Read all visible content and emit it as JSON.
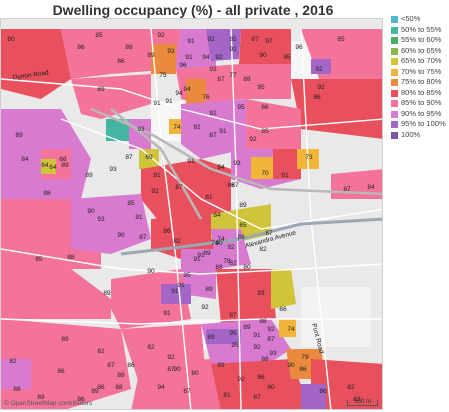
{
  "title": "Dwelling occupancy (%) - all private , 2016",
  "legend": [
    {
      "label": "<50%",
      "color": "#4fb6c8"
    },
    {
      "label": "50% to 55%",
      "color": "#45b5a3"
    },
    {
      "label": "55% to 60%",
      "color": "#4caf68"
    },
    {
      "label": "60% to 65%",
      "color": "#86b84a"
    },
    {
      "label": "65% to 70%",
      "color": "#cfc43a"
    },
    {
      "label": "70% to 75%",
      "color": "#f2b53a"
    },
    {
      "label": "75% to 80%",
      "color": "#ea8a3e"
    },
    {
      "label": "80% to 85%",
      "color": "#e8505e"
    },
    {
      "label": "85% to 90%",
      "color": "#f4739a"
    },
    {
      "label": "90% to 95%",
      "color": "#d77ad0"
    },
    {
      "label": "95% to 100%",
      "color": "#a466c6"
    },
    {
      "label": "100%",
      "color": "#7d55a6"
    }
  ],
  "map": {
    "attribution": "© OpenStreetMap contributors",
    "scale_label": "500 m",
    "road_labels": [
      "Dynon Road",
      "Alexandra Avenue",
      "Punt Road"
    ],
    "area_values": [
      "80",
      "86",
      "85",
      "92",
      "88",
      "91",
      "92",
      "85",
      "87",
      "97",
      "86",
      "93",
      "89",
      "91",
      "94",
      "92",
      "92",
      "90",
      "95",
      "96",
      "85",
      "92",
      "75",
      "96",
      "93",
      "87",
      "77",
      "88",
      "95",
      "92",
      "89",
      "76",
      "94",
      "91",
      "91",
      "94",
      "92",
      "86",
      "95",
      "86",
      "93",
      "74",
      "92",
      "91",
      "85",
      "87",
      "92",
      "89",
      "69",
      "87",
      "93",
      "91",
      "81",
      "61",
      "73",
      "92",
      "94",
      "93",
      "84",
      "89",
      "89",
      "87",
      "86",
      "64",
      "90",
      "70",
      "84",
      "87",
      "88",
      "81",
      "85",
      "91",
      "86",
      "93",
      "87",
      "84",
      "90",
      "87",
      "89",
      "65",
      "92",
      "91",
      "82",
      "90",
      "89",
      "82",
      "74",
      "89",
      "82",
      "87",
      "91",
      "78",
      "74",
      "88",
      "80",
      "88",
      "85",
      "95",
      "90",
      "89",
      "91",
      "91",
      "89",
      "93",
      "87",
      "91",
      "92",
      "88",
      "92",
      "66",
      "74",
      "95",
      "89",
      "91",
      "87",
      "93",
      "92",
      "88",
      "90",
      "86",
      "89",
      "82",
      "87",
      "86",
      "86",
      "89",
      "82",
      "79",
      "86",
      "87",
      "88",
      "94",
      "90",
      "89",
      "80",
      "81",
      "92",
      "86",
      "87",
      "83",
      "88",
      "89",
      "86",
      "87",
      "82",
      "80",
      "86",
      "64",
      "68",
      "89",
      "82",
      "92",
      "89",
      "95"
    ]
  }
}
